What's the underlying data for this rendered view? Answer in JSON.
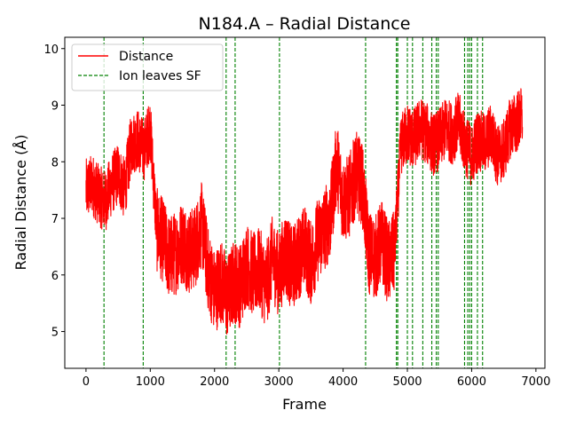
{
  "chart_data": {
    "type": "line",
    "title": "N184.A – Radial Distance",
    "xlabel": "Frame",
    "ylabel": "Radial Distance (Å)",
    "xlim": [
      -330,
      7140
    ],
    "ylim": [
      4.35,
      10.2
    ],
    "xticks": [
      0,
      1000,
      2000,
      3000,
      4000,
      5000,
      6000,
      7000
    ],
    "yticks": [
      5,
      6,
      7,
      8,
      9,
      10
    ],
    "legend": {
      "position": "top-left",
      "entries": [
        "Distance",
        "Ion leaves SF"
      ]
    },
    "colors": {
      "distance": "#ff0000",
      "event": "#008000"
    },
    "series": [
      {
        "name": "Distance",
        "x": [
          0,
          100,
          200,
          300,
          400,
          500,
          600,
          700,
          800,
          900,
          1000,
          1100,
          1200,
          1300,
          1400,
          1500,
          1600,
          1700,
          1800,
          1900,
          2000,
          2100,
          2200,
          2300,
          2400,
          2500,
          2600,
          2700,
          2800,
          2900,
          3000,
          3100,
          3200,
          3300,
          3400,
          3500,
          3600,
          3700,
          3800,
          3900,
          4000,
          4100,
          4200,
          4300,
          4400,
          4500,
          4600,
          4700,
          4800,
          4900,
          5000,
          5100,
          5200,
          5300,
          5400,
          5500,
          5600,
          5700,
          5800,
          5900,
          6000,
          6100,
          6200,
          6300,
          6400,
          6500,
          6600,
          6700,
          6790
        ],
        "y": [
          7.5,
          7.6,
          7.4,
          7.3,
          7.6,
          7.8,
          7.5,
          8.3,
          8.4,
          8.2,
          8.6,
          6.8,
          6.6,
          6.3,
          6.4,
          6.6,
          6.4,
          6.5,
          6.9,
          6.1,
          5.7,
          5.9,
          5.6,
          5.9,
          5.8,
          6.2,
          6.0,
          6.1,
          5.8,
          6.3,
          6.0,
          6.4,
          6.1,
          6.3,
          6.5,
          6.2,
          6.6,
          6.8,
          7.0,
          8.0,
          7.3,
          7.4,
          7.8,
          7.6,
          6.4,
          6.3,
          6.6,
          6.2,
          6.4,
          8.3,
          8.5,
          8.4,
          8.6,
          8.5,
          8.3,
          8.4,
          8.6,
          8.5,
          8.7,
          8.3,
          8.1,
          8.4,
          8.3,
          8.5,
          8.1,
          8.2,
          8.6,
          8.7,
          8.8
        ]
      }
    ],
    "events": [
      280,
      890,
      2180,
      2320,
      3010,
      4350,
      4830,
      4850,
      5000,
      5080,
      5240,
      5380,
      5450,
      5480,
      5890,
      5940,
      5970,
      6000,
      6090,
      6170
    ]
  }
}
